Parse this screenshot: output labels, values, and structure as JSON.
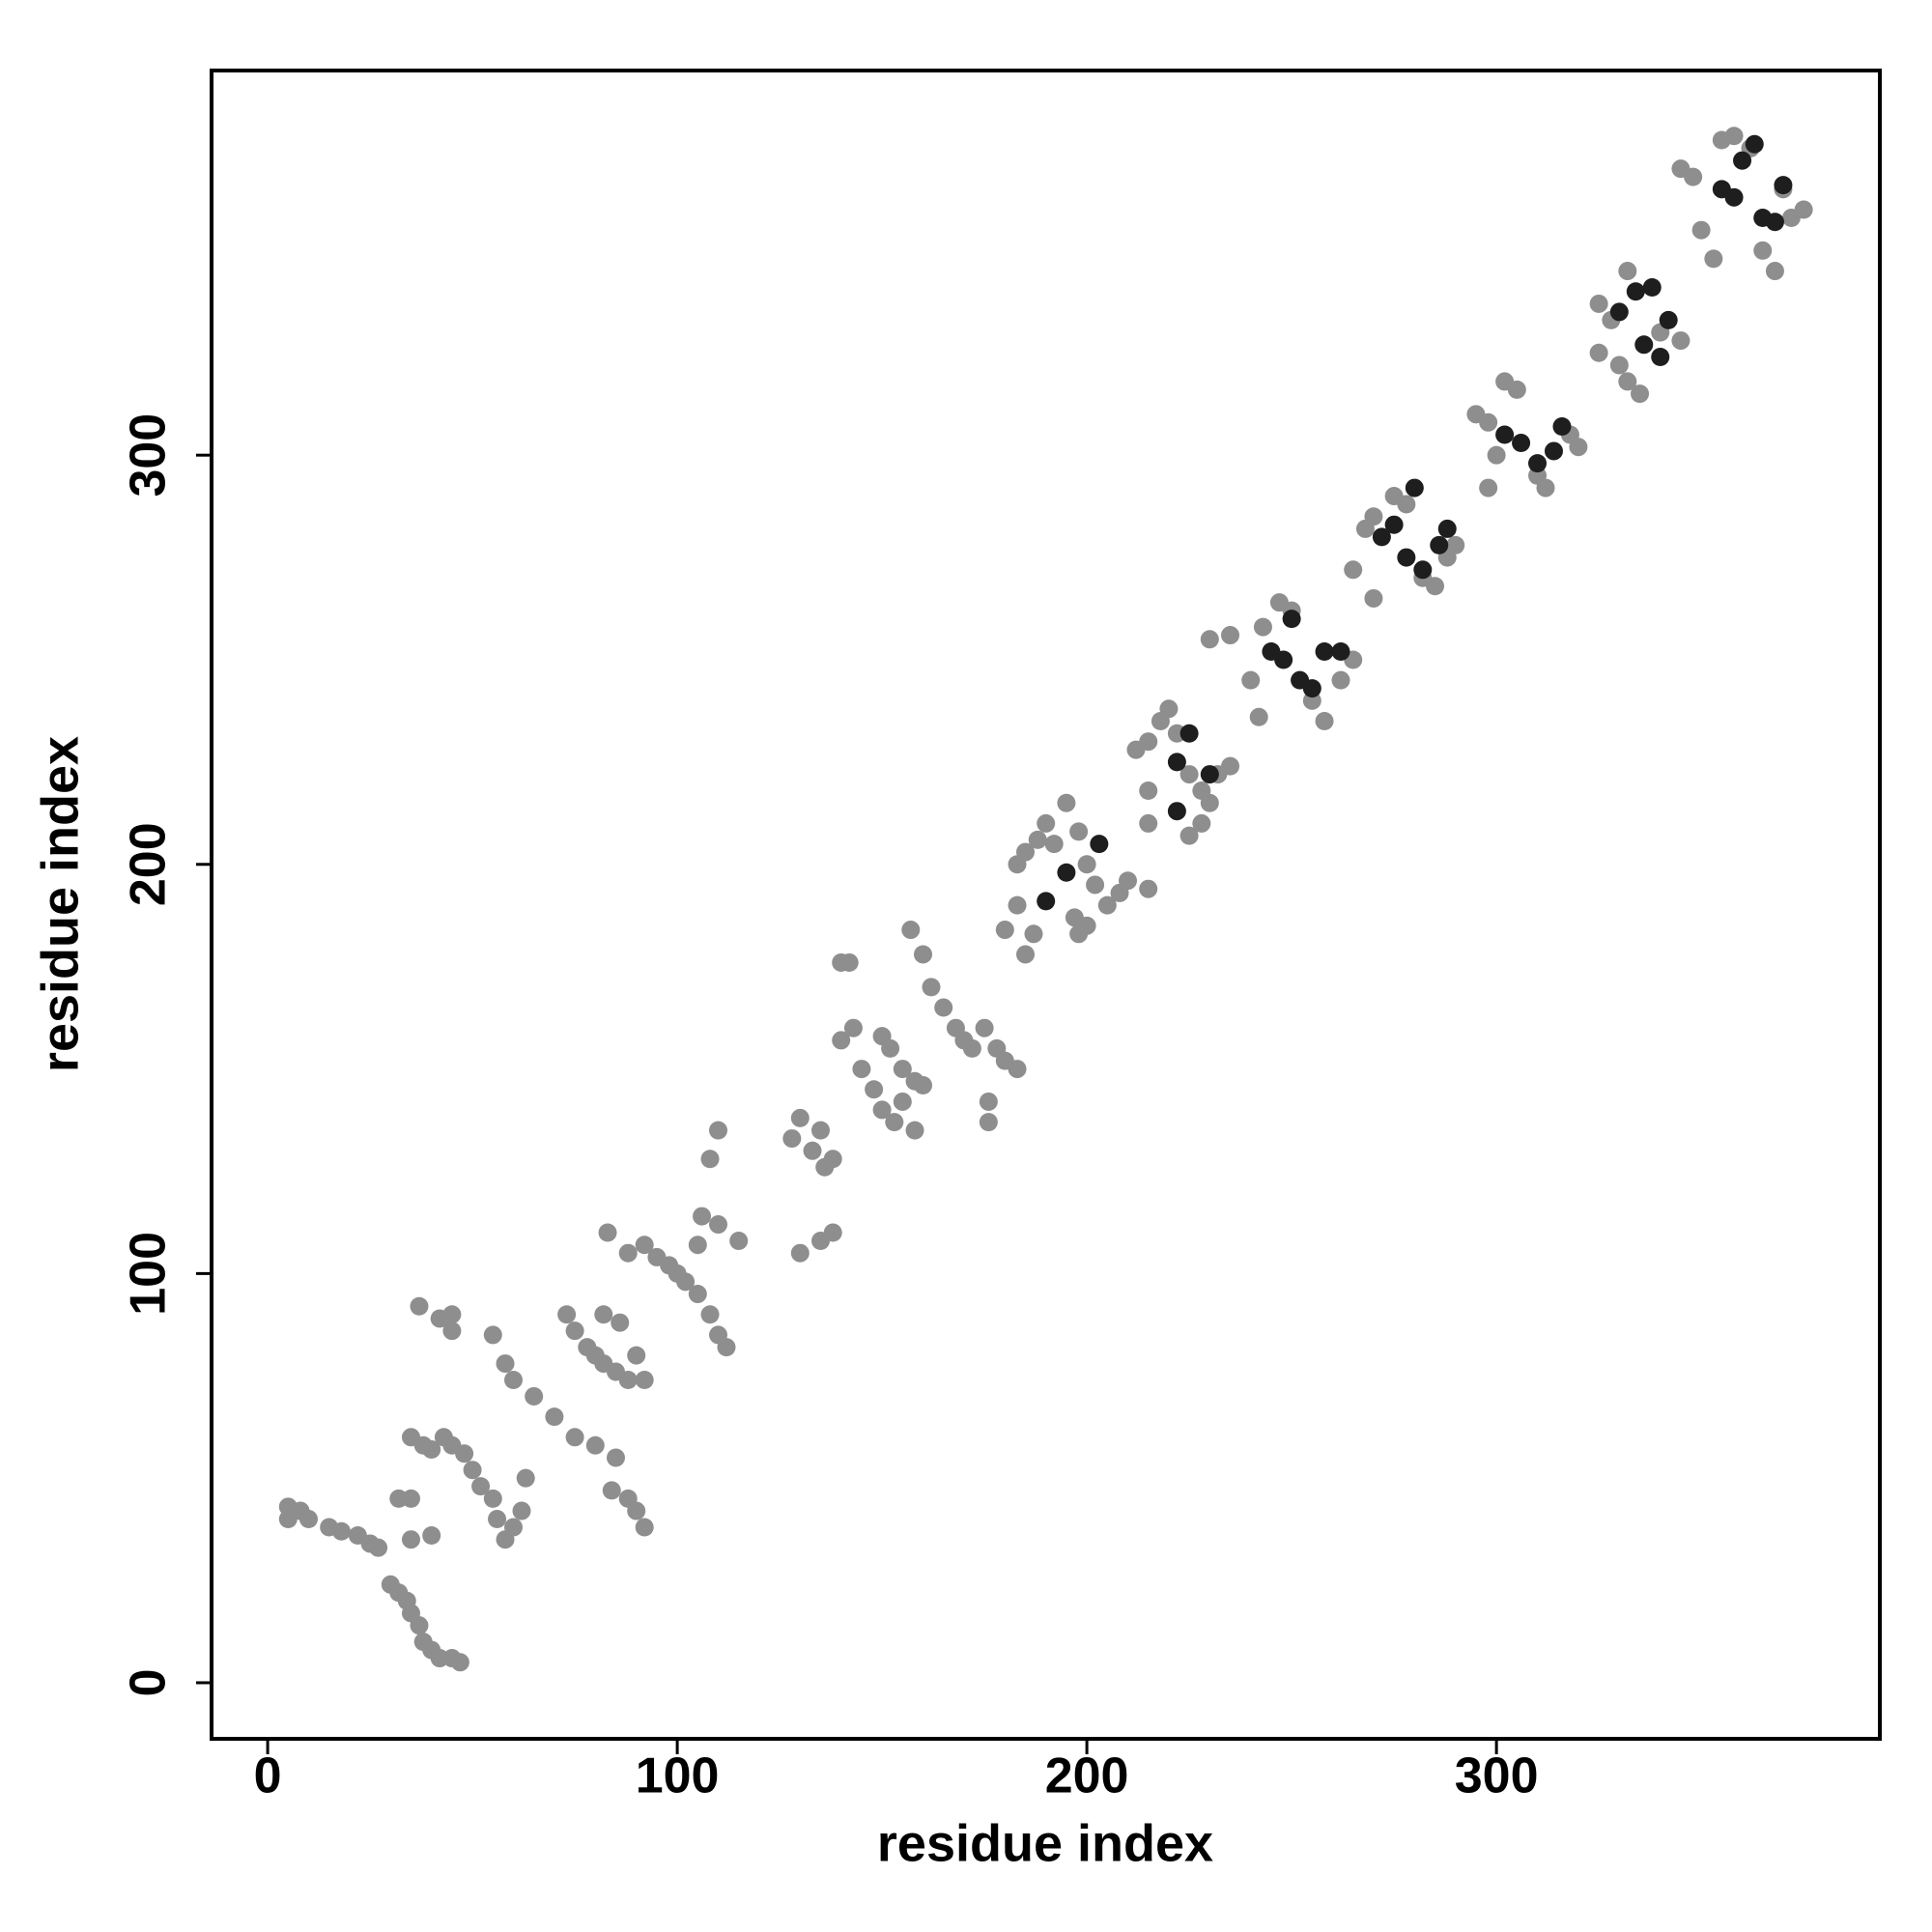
{
  "chart_data": {
    "type": "scatter",
    "xlabel": "residue index",
    "ylabel": "residue index",
    "xlim": [
      -13.7,
      393.6
    ],
    "ylim": [
      -13.7,
      394
    ],
    "xticks": [
      0,
      100,
      200,
      300
    ],
    "yticks": [
      0,
      100,
      200,
      300
    ],
    "grid": false,
    "series": [
      {
        "color": "#8e8e8e",
        "x": [
          5,
          5,
          8,
          10,
          15,
          18,
          22,
          25,
          27,
          30,
          32,
          34,
          35,
          37,
          38,
          40,
          42,
          45,
          47,
          37,
          42,
          45,
          45,
          32,
          35,
          35,
          38,
          40,
          43,
          45,
          48,
          50,
          35,
          40,
          52,
          55,
          56,
          58,
          60,
          62,
          55,
          58,
          60,
          65,
          70,
          75,
          80,
          85,
          84,
          88,
          90,
          92,
          63,
          73,
          75,
          78,
          80,
          82,
          85,
          88,
          90,
          92,
          82,
          86,
          83,
          88,
          92,
          95,
          98,
          100,
          102,
          105,
          108,
          110,
          112,
          110,
          115,
          106,
          108,
          110,
          105,
          128,
          130,
          133,
          135,
          136,
          138,
          130,
          135,
          138,
          140,
          143,
          145,
          148,
          150,
          153,
          155,
          158,
          140,
          142,
          150,
          152,
          155,
          158,
          160,
          160,
          162,
          165,
          168,
          170,
          172,
          175,
          178,
          180,
          183,
          176,
          176,
          157,
          180,
          183,
          185,
          187,
          183,
          185,
          188,
          190,
          192,
          195,
          198,
          200,
          202,
          205,
          208,
          210,
          215,
          197,
          198,
          200,
          212,
          215,
          218,
          220,
          222,
          225,
          228,
          230,
          228,
          225,
          215,
          215,
          232,
          235,
          230,
          235,
          240,
          243,
          247,
          250,
          255,
          258,
          262,
          265,
          242,
          265,
          268,
          270,
          275,
          278,
          282,
          285,
          288,
          290,
          270,
          295,
          298,
          300,
          302,
          305,
          310,
          312,
          318,
          320,
          298,
          325,
          328,
          330,
          332,
          335,
          340,
          345,
          332,
          325,
          345,
          348,
          350,
          353,
          355,
          358,
          362,
          365,
          368,
          372,
          375,
          370
        ],
        "values": [
          43,
          40,
          42,
          40,
          38,
          37,
          36,
          34,
          33,
          24,
          22,
          20,
          17,
          14,
          10,
          8,
          6,
          6,
          5,
          92,
          89,
          86,
          90,
          45,
          45,
          60,
          58,
          57,
          60,
          58,
          56,
          52,
          35,
          36,
          48,
          45,
          40,
          35,
          38,
          42,
          85,
          78,
          74,
          70,
          65,
          60,
          58,
          55,
          47,
          45,
          42,
          38,
          50,
          90,
          86,
          82,
          80,
          78,
          76,
          74,
          80,
          74,
          90,
          88,
          110,
          105,
          107,
          104,
          102,
          100,
          98,
          95,
          90,
          85,
          82,
          112,
          108,
          114,
          128,
          135,
          107,
          133,
          138,
          130,
          135,
          126,
          128,
          105,
          108,
          110,
          157,
          160,
          150,
          145,
          140,
          137,
          142,
          135,
          176,
          176,
          158,
          155,
          150,
          147,
          146,
          178,
          170,
          165,
          160,
          157,
          155,
          160,
          155,
          152,
          150,
          142,
          137,
          184,
          184,
          190,
          178,
          183,
          200,
          203,
          206,
          210,
          205,
          215,
          208,
          200,
          195,
          190,
          193,
          196,
          194,
          187,
          183,
          185,
          228,
          230,
          235,
          238,
          232,
          222,
          218,
          215,
          210,
          207,
          210,
          218,
          222,
          224,
          255,
          256,
          245,
          258,
          264,
          262,
          240,
          235,
          245,
          250,
          236,
          272,
          282,
          285,
          290,
          288,
          270,
          268,
          275,
          278,
          265,
          310,
          308,
          300,
          318,
          316,
          295,
          292,
          305,
          302,
          292,
          337,
          333,
          322,
          318,
          315,
          330,
          328,
          345,
          325,
          370,
          368,
          355,
          348,
          377,
          378,
          375,
          350,
          345,
          358,
          360,
          365
        ]
      },
      {
        "color": "#1e1e1e",
        "x": [
          195,
          190,
          203,
          222,
          225,
          222,
          230,
          245,
          248,
          252,
          255,
          258,
          262,
          250,
          272,
          275,
          278,
          282,
          286,
          288,
          280,
          302,
          306,
          310,
          314,
          316,
          330,
          334,
          336,
          340,
          342,
          338,
          355,
          358,
          360,
          365,
          368,
          370,
          363
        ],
        "values": [
          198,
          191,
          205,
          225,
          232,
          213,
          222,
          252,
          250,
          245,
          243,
          252,
          252,
          260,
          280,
          283,
          275,
          272,
          278,
          282,
          292,
          305,
          303,
          298,
          301,
          307,
          335,
          340,
          327,
          324,
          333,
          341,
          365,
          363,
          372,
          358,
          357,
          366,
          376
        ]
      }
    ]
  }
}
